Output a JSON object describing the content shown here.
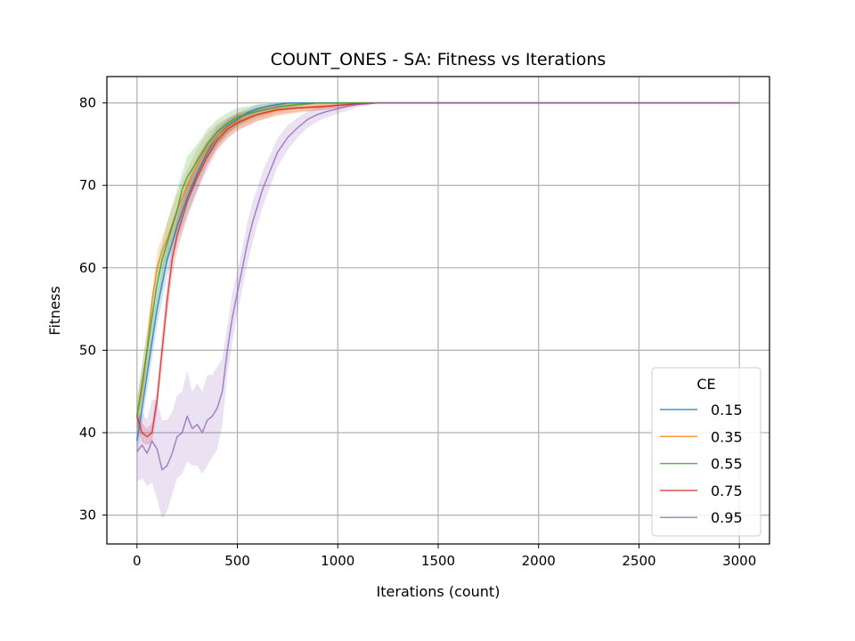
{
  "chart_data": {
    "type": "line",
    "title": "COUNT_ONES - SA: Fitness vs Iterations",
    "xlabel": "Iterations (count)",
    "ylabel": "Fitness",
    "xlim": [
      -150,
      3150
    ],
    "ylim": [
      26.5,
      83.2
    ],
    "xticks": [
      0,
      500,
      1000,
      1500,
      2000,
      2500,
      3000
    ],
    "yticks": [
      30,
      40,
      50,
      60,
      70,
      80
    ],
    "grid": true,
    "legend": {
      "title": "CE",
      "position": "lower-right"
    },
    "series": [
      {
        "name": "0.15",
        "color": "#1f77b4",
        "points": [
          [
            0,
            39
          ],
          [
            25,
            43
          ],
          [
            50,
            47
          ],
          [
            75,
            51
          ],
          [
            100,
            55
          ],
          [
            125,
            58
          ],
          [
            150,
            61
          ],
          [
            200,
            65
          ],
          [
            250,
            68.5
          ],
          [
            300,
            71.5
          ],
          [
            350,
            74
          ],
          [
            400,
            76
          ],
          [
            450,
            77.2
          ],
          [
            500,
            78
          ],
          [
            550,
            78.8
          ],
          [
            600,
            79.3
          ],
          [
            650,
            79.6
          ],
          [
            700,
            79.8
          ],
          [
            750,
            80
          ],
          [
            3000,
            80
          ]
        ],
        "band": [
          [
            0,
            37,
            41
          ],
          [
            50,
            45,
            49
          ],
          [
            100,
            53,
            57
          ],
          [
            150,
            59,
            63
          ],
          [
            200,
            63,
            67
          ],
          [
            250,
            66.5,
            70.5
          ],
          [
            300,
            69.5,
            73.5
          ],
          [
            350,
            72.5,
            75.5
          ],
          [
            400,
            74.8,
            77.2
          ],
          [
            450,
            76.3,
            78.1
          ],
          [
            500,
            77.2,
            78.8
          ],
          [
            600,
            78.8,
            79.8
          ],
          [
            700,
            79.5,
            80
          ],
          [
            800,
            80,
            80
          ],
          [
            3000,
            80,
            80
          ]
        ]
      },
      {
        "name": "0.35",
        "color": "#ff7f0e",
        "points": [
          [
            0,
            42
          ],
          [
            25,
            45
          ],
          [
            50,
            50
          ],
          [
            75,
            56
          ],
          [
            100,
            60
          ],
          [
            125,
            62
          ],
          [
            150,
            63.5
          ],
          [
            200,
            67
          ],
          [
            250,
            70
          ],
          [
            300,
            72.5
          ],
          [
            350,
            74.5
          ],
          [
            400,
            76
          ],
          [
            450,
            77
          ],
          [
            500,
            77.8
          ],
          [
            600,
            78.6
          ],
          [
            700,
            79.1
          ],
          [
            800,
            79.4
          ],
          [
            900,
            79.6
          ],
          [
            1000,
            79.7
          ],
          [
            1050,
            79.8
          ],
          [
            1100,
            80
          ],
          [
            3000,
            80
          ]
        ],
        "band": [
          [
            0,
            40,
            44
          ],
          [
            50,
            48,
            52
          ],
          [
            100,
            58,
            62
          ],
          [
            150,
            61.5,
            65.5
          ],
          [
            200,
            65,
            69
          ],
          [
            250,
            68,
            72
          ],
          [
            300,
            70.5,
            74.5
          ],
          [
            350,
            72.7,
            76.3
          ],
          [
            400,
            74.5,
            77.5
          ],
          [
            450,
            75.8,
            78.2
          ],
          [
            500,
            76.8,
            78.8
          ],
          [
            600,
            77.8,
            79.4
          ],
          [
            700,
            78.4,
            79.8
          ],
          [
            800,
            78.8,
            80
          ],
          [
            900,
            79.1,
            80
          ],
          [
            1050,
            79.5,
            80
          ],
          [
            1150,
            80,
            80
          ],
          [
            3000,
            80,
            80
          ]
        ]
      },
      {
        "name": "0.55",
        "color": "#2ca02c",
        "points": [
          [
            0,
            42
          ],
          [
            25,
            46
          ],
          [
            50,
            50
          ],
          [
            75,
            54
          ],
          [
            100,
            58
          ],
          [
            125,
            61
          ],
          [
            150,
            63
          ],
          [
            175,
            65
          ],
          [
            200,
            67
          ],
          [
            225,
            69.5
          ],
          [
            250,
            71
          ],
          [
            300,
            73
          ],
          [
            350,
            75
          ],
          [
            400,
            76.5
          ],
          [
            450,
            77.5
          ],
          [
            500,
            78.3
          ],
          [
            600,
            79
          ],
          [
            700,
            79.5
          ],
          [
            800,
            79.8
          ],
          [
            900,
            80
          ],
          [
            3000,
            80
          ]
        ],
        "band": [
          [
            0,
            40,
            44
          ],
          [
            50,
            47.5,
            52.5
          ],
          [
            100,
            55.5,
            60.5
          ],
          [
            150,
            60.5,
            65.5
          ],
          [
            200,
            64.5,
            69.5
          ],
          [
            250,
            68.5,
            73.5
          ],
          [
            300,
            71,
            75
          ],
          [
            350,
            73.2,
            76.8
          ],
          [
            400,
            75,
            78
          ],
          [
            450,
            76.2,
            78.8
          ],
          [
            500,
            77.2,
            79.4
          ],
          [
            600,
            78.2,
            79.8
          ],
          [
            700,
            79,
            80
          ],
          [
            800,
            79.5,
            80
          ],
          [
            900,
            80,
            80
          ],
          [
            3000,
            80,
            80
          ]
        ]
      },
      {
        "name": "0.75",
        "color": "#d62728",
        "points": [
          [
            0,
            42
          ],
          [
            25,
            40
          ],
          [
            50,
            39.5
          ],
          [
            75,
            40
          ],
          [
            100,
            44
          ],
          [
            125,
            50
          ],
          [
            150,
            56
          ],
          [
            175,
            61
          ],
          [
            200,
            64
          ],
          [
            250,
            68
          ],
          [
            300,
            71
          ],
          [
            350,
            73.5
          ],
          [
            400,
            75.5
          ],
          [
            450,
            76.8
          ],
          [
            500,
            77.6
          ],
          [
            600,
            78.6
          ],
          [
            700,
            79.2
          ],
          [
            800,
            79.4
          ],
          [
            900,
            79.5
          ],
          [
            1000,
            79.7
          ],
          [
            1100,
            79.9
          ],
          [
            1200,
            80
          ],
          [
            3000,
            80
          ]
        ],
        "band": [
          [
            0,
            41,
            43
          ],
          [
            25,
            38.8,
            41.2
          ],
          [
            50,
            38.5,
            40.5
          ],
          [
            75,
            38.8,
            41.2
          ],
          [
            100,
            42.5,
            45.5
          ],
          [
            125,
            48,
            52
          ],
          [
            150,
            54,
            58
          ],
          [
            175,
            59,
            63
          ],
          [
            200,
            62,
            66
          ],
          [
            250,
            66,
            70
          ],
          [
            300,
            69.3,
            72.7
          ],
          [
            350,
            72,
            75
          ],
          [
            400,
            74.3,
            76.7
          ],
          [
            450,
            75.7,
            77.9
          ],
          [
            500,
            76.6,
            78.6
          ],
          [
            600,
            77.8,
            79.4
          ],
          [
            700,
            78.6,
            79.8
          ],
          [
            800,
            78.9,
            79.9
          ],
          [
            900,
            79.1,
            79.9
          ],
          [
            1000,
            79.4,
            80
          ],
          [
            1100,
            79.7,
            80
          ],
          [
            1200,
            80,
            80
          ],
          [
            3000,
            80,
            80
          ]
        ]
      },
      {
        "name": "0.95",
        "color": "#9467bd",
        "points": [
          [
            0,
            37.7
          ],
          [
            25,
            38.5
          ],
          [
            50,
            37.5
          ],
          [
            75,
            39
          ],
          [
            100,
            38
          ],
          [
            125,
            35.5
          ],
          [
            150,
            36
          ],
          [
            175,
            37.5
          ],
          [
            200,
            39.5
          ],
          [
            225,
            40
          ],
          [
            250,
            42
          ],
          [
            275,
            40.5
          ],
          [
            300,
            41
          ],
          [
            325,
            40
          ],
          [
            350,
            41.5
          ],
          [
            375,
            42
          ],
          [
            400,
            43
          ],
          [
            425,
            45
          ],
          [
            450,
            50
          ],
          [
            475,
            54
          ],
          [
            500,
            57
          ],
          [
            525,
            60
          ],
          [
            550,
            63
          ],
          [
            575,
            65.5
          ],
          [
            600,
            67.5
          ],
          [
            625,
            69.5
          ],
          [
            650,
            71
          ],
          [
            675,
            72.5
          ],
          [
            700,
            74
          ],
          [
            750,
            75.8
          ],
          [
            800,
            77
          ],
          [
            850,
            78
          ],
          [
            900,
            78.6
          ],
          [
            950,
            79
          ],
          [
            1000,
            79.3
          ],
          [
            1050,
            79.6
          ],
          [
            1100,
            79.8
          ],
          [
            1150,
            79.9
          ],
          [
            1200,
            80
          ],
          [
            3000,
            80
          ]
        ],
        "band": [
          [
            0,
            34,
            41.5
          ],
          [
            25,
            34.5,
            42.5
          ],
          [
            50,
            33.5,
            41.5
          ],
          [
            75,
            34,
            44
          ],
          [
            100,
            32,
            44
          ],
          [
            125,
            29.5,
            41.5
          ],
          [
            150,
            30.5,
            41.5
          ],
          [
            175,
            32.5,
            42.5
          ],
          [
            200,
            34.5,
            44.5
          ],
          [
            225,
            35,
            45
          ],
          [
            250,
            36.5,
            47.5
          ],
          [
            275,
            36,
            45
          ],
          [
            300,
            36,
            46
          ],
          [
            325,
            35,
            45
          ],
          [
            350,
            36,
            47
          ],
          [
            375,
            37,
            47
          ],
          [
            400,
            38,
            48
          ],
          [
            425,
            41,
            49
          ],
          [
            450,
            47,
            53
          ],
          [
            475,
            51,
            57
          ],
          [
            500,
            54.5,
            59.5
          ],
          [
            525,
            57.5,
            62.5
          ],
          [
            550,
            60.5,
            65.5
          ],
          [
            575,
            63,
            68
          ],
          [
            600,
            65.3,
            69.7
          ],
          [
            625,
            67.3,
            71.7
          ],
          [
            650,
            69,
            73
          ],
          [
            675,
            70.7,
            74.3
          ],
          [
            700,
            72.3,
            75.7
          ],
          [
            750,
            74.3,
            77.3
          ],
          [
            800,
            75.8,
            78.2
          ],
          [
            850,
            77,
            79
          ],
          [
            900,
            77.8,
            79.4
          ],
          [
            950,
            78.3,
            79.7
          ],
          [
            1000,
            78.7,
            79.9
          ],
          [
            1050,
            79.1,
            80
          ],
          [
            1100,
            79.5,
            80
          ],
          [
            1150,
            79.7,
            80
          ],
          [
            1200,
            80,
            80
          ],
          [
            3000,
            80,
            80
          ]
        ]
      }
    ]
  }
}
